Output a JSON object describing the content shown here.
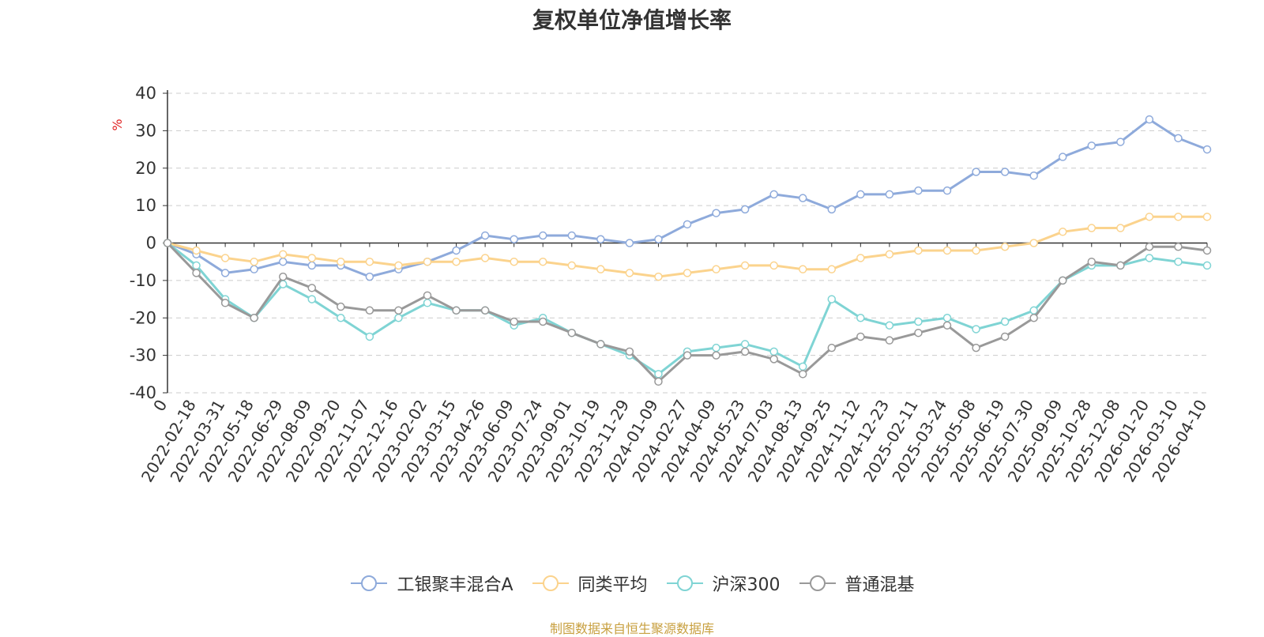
{
  "title": "复权单位净值增长率",
  "source_note": "制图数据来自恒生聚源数据库",
  "chart_data": {
    "type": "line",
    "title": "复权单位净值增长率",
    "ylabel": "%",
    "ylim": [
      -40,
      40
    ],
    "yticks": [
      40,
      30,
      20,
      10,
      0,
      -10,
      -20,
      -30,
      -40
    ],
    "grid": true,
    "legend_position": "bottom",
    "x_tick_labels": [
      "0",
      "2022-02-18",
      "2022-03-31",
      "2022-05-18",
      "2022-06-29",
      "2022-08-09",
      "2022-09-20",
      "2022-11-07",
      "2022-12-16",
      "2023-02-02",
      "2023-03-15",
      "2023-04-26",
      "2023-06-09",
      "2023-07-24",
      "2023-09-01",
      "2023-10-19",
      "2023-11-29",
      "2024-01-09",
      "2024-02-27",
      "2024-04-09",
      "2024-05-23",
      "2024-07-03",
      "2024-08-13",
      "2024-09-25",
      "2024-11-12",
      "2024-12-23",
      "2025-02-11",
      "2025-03-24",
      "2025-05-08",
      "2025-06-19",
      "2025-07-30",
      "2025-09-09",
      "2025-10-28",
      "2025-12-08",
      "2026-01-20",
      "2026-03-10",
      "2026-04-10"
    ],
    "series": [
      {
        "name": "工银聚丰混合A",
        "color": "#8eaadb",
        "values": [
          0,
          -3,
          -8,
          -7,
          -5,
          -6,
          -6,
          -9,
          -7,
          -5,
          -2,
          2,
          1,
          2,
          2,
          1,
          0,
          1,
          5,
          8,
          9,
          13,
          12,
          9,
          13,
          13,
          14,
          14,
          19,
          19,
          18,
          23,
          26,
          27,
          33,
          28,
          25
        ]
      },
      {
        "name": "同类平均",
        "color": "#fbd38d",
        "values": [
          0,
          -2,
          -4,
          -5,
          -3,
          -4,
          -5,
          -5,
          -6,
          -5,
          -5,
          -4,
          -5,
          -5,
          -6,
          -7,
          -8,
          -9,
          -8,
          -7,
          -6,
          -6,
          -7,
          -7,
          -4,
          -3,
          -2,
          -2,
          -2,
          -1,
          0,
          3,
          4,
          4,
          7,
          7,
          7
        ]
      },
      {
        "name": "沪深300",
        "color": "#7fd4d4",
        "values": [
          0,
          -6,
          -15,
          -20,
          -11,
          -15,
          -20,
          -25,
          -20,
          -16,
          -18,
          -18,
          -22,
          -20,
          -24,
          -27,
          -30,
          -35,
          -29,
          -28,
          -27,
          -29,
          -33,
          -15,
          -20,
          -22,
          -21,
          -20,
          -23,
          -21,
          -18,
          -10,
          -6,
          -6,
          -4,
          -5,
          -6
        ]
      },
      {
        "name": "普通混基",
        "color": "#999999",
        "values": [
          0,
          -8,
          -16,
          -20,
          -9,
          -12,
          -17,
          -18,
          -18,
          -14,
          -18,
          -18,
          -21,
          -21,
          -24,
          -27,
          -29,
          -37,
          -30,
          -30,
          -29,
          -31,
          -35,
          -28,
          -25,
          -26,
          -24,
          -22,
          -28,
          -25,
          -20,
          -10,
          -5,
          -6,
          -1,
          -1,
          -2
        ]
      }
    ]
  }
}
